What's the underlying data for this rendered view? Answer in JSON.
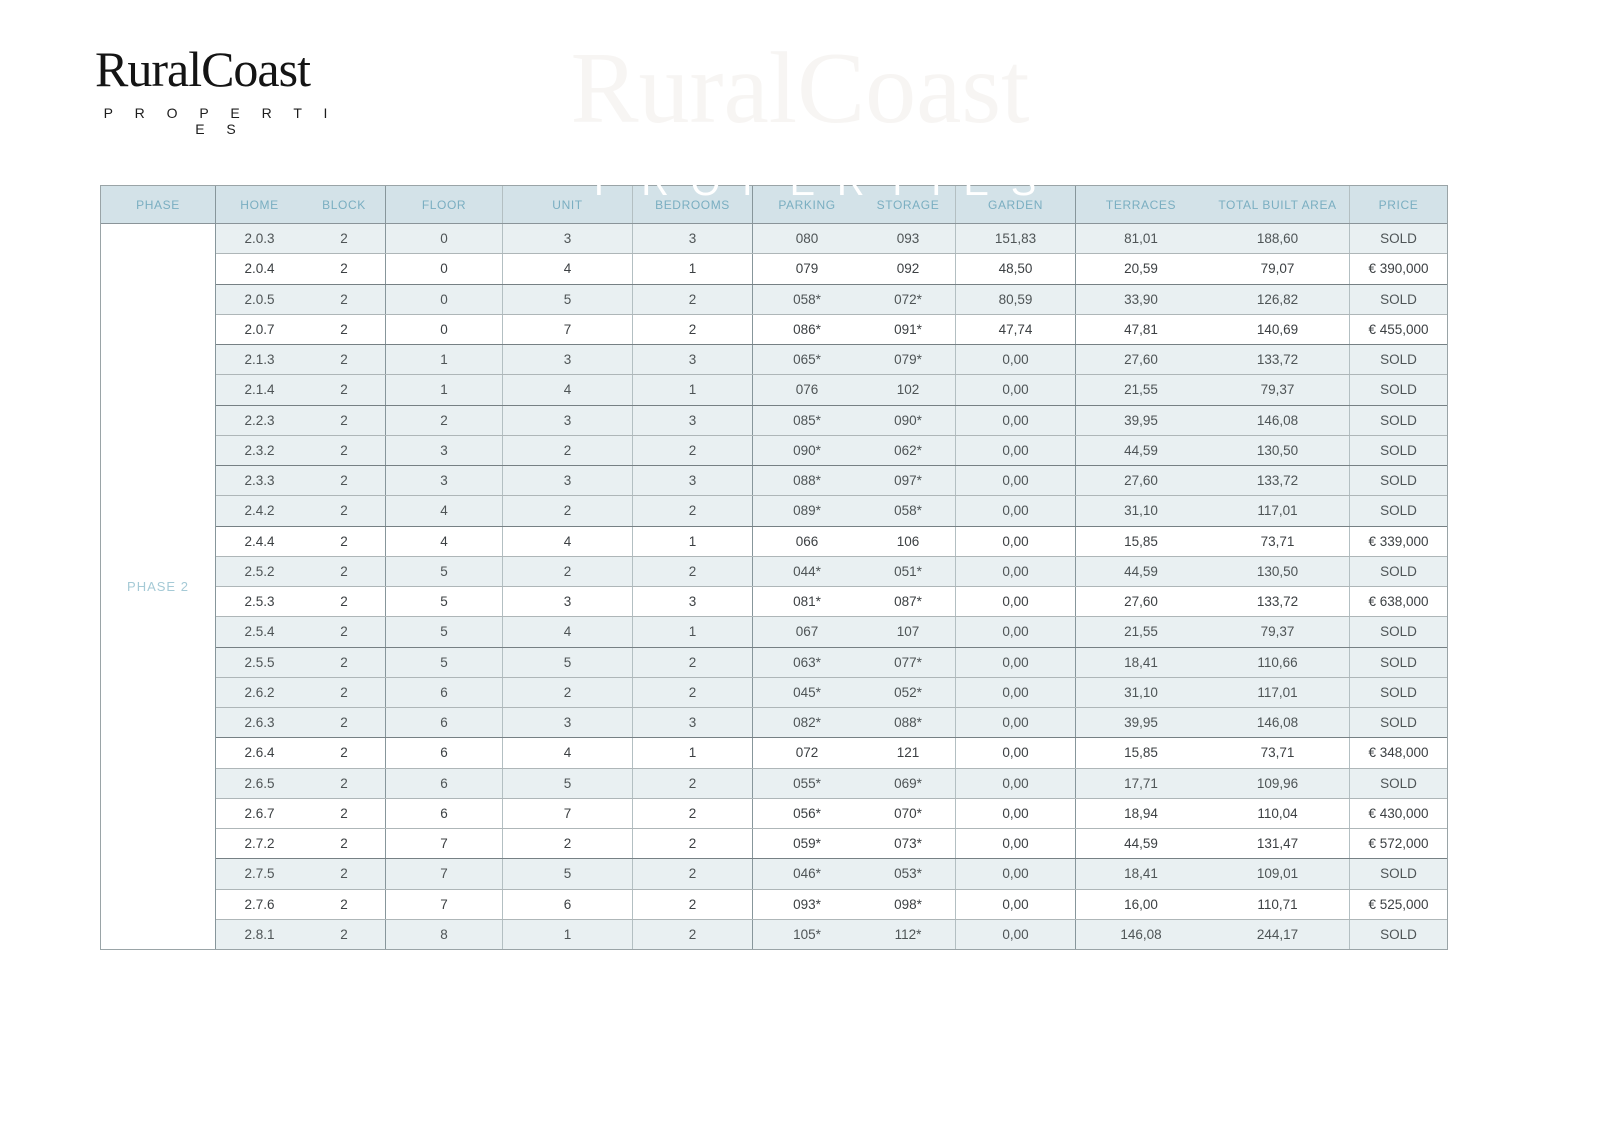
{
  "brand": {
    "name": "RuralCoast",
    "tagline": "P R O P E R T I E S"
  },
  "watermark": {
    "line1": "RuralCoast",
    "line2": "PROPERTIES"
  },
  "colors": {
    "header_bg": "#d3e2e8",
    "header_text": "#7aaec1",
    "sold_row_tint": "#e9f0f2",
    "phase_label_text": "#a5cad6",
    "body_text": "#3c4043"
  },
  "table": {
    "phase_label": "PHASE 2",
    "headers": [
      "PHASE",
      "HOME",
      "BLOCK",
      "FLOOR",
      "UNIT",
      "BEDROOMS",
      "PARKING",
      "STORAGE",
      "GARDEN",
      "TERRACES",
      "TOTAL BUILT AREA",
      "PRICE"
    ],
    "rows": [
      {
        "home": "2.0.3",
        "block": "2",
        "floor": "0",
        "unit": "3",
        "bedrooms": "3",
        "parking": "080",
        "storage": "093",
        "garden": "151,83",
        "terraces": "81,01",
        "total_built_area": "188,60",
        "price": "SOLD",
        "sold": true,
        "sep": false
      },
      {
        "home": "2.0.4",
        "block": "2",
        "floor": "0",
        "unit": "4",
        "bedrooms": "1",
        "parking": "079",
        "storage": "092",
        "garden": "48,50",
        "terraces": "20,59",
        "total_built_area": "79,07",
        "price": "€ 390,000",
        "sold": false,
        "sep": false
      },
      {
        "home": "2.0.5",
        "block": "2",
        "floor": "0",
        "unit": "5",
        "bedrooms": "2",
        "parking": "058*",
        "storage": "072*",
        "garden": "80,59",
        "terraces": "33,90",
        "total_built_area": "126,82",
        "price": "SOLD",
        "sold": true,
        "sep": true
      },
      {
        "home": "2.0.7",
        "block": "2",
        "floor": "0",
        "unit": "7",
        "bedrooms": "2",
        "parking": "086*",
        "storage": "091*",
        "garden": "47,74",
        "terraces": "47,81",
        "total_built_area": "140,69",
        "price": "€ 455,000",
        "sold": false,
        "sep": false
      },
      {
        "home": "2.1.3",
        "block": "2",
        "floor": "1",
        "unit": "3",
        "bedrooms": "3",
        "parking": "065*",
        "storage": "079*",
        "garden": "0,00",
        "terraces": "27,60",
        "total_built_area": "133,72",
        "price": "SOLD",
        "sold": true,
        "sep": true
      },
      {
        "home": "2.1.4",
        "block": "2",
        "floor": "1",
        "unit": "4",
        "bedrooms": "1",
        "parking": "076",
        "storage": "102",
        "garden": "0,00",
        "terraces": "21,55",
        "total_built_area": "79,37",
        "price": "SOLD",
        "sold": true,
        "sep": false
      },
      {
        "home": "2.2.3",
        "block": "2",
        "floor": "2",
        "unit": "3",
        "bedrooms": "3",
        "parking": "085*",
        "storage": "090*",
        "garden": "0,00",
        "terraces": "39,95",
        "total_built_area": "146,08",
        "price": "SOLD",
        "sold": true,
        "sep": true
      },
      {
        "home": "2.3.2",
        "block": "2",
        "floor": "3",
        "unit": "2",
        "bedrooms": "2",
        "parking": "090*",
        "storage": "062*",
        "garden": "0,00",
        "terraces": "44,59",
        "total_built_area": "130,50",
        "price": "SOLD",
        "sold": true,
        "sep": false
      },
      {
        "home": "2.3.3",
        "block": "2",
        "floor": "3",
        "unit": "3",
        "bedrooms": "3",
        "parking": "088*",
        "storage": "097*",
        "garden": "0,00",
        "terraces": "27,60",
        "total_built_area": "133,72",
        "price": "SOLD",
        "sold": true,
        "sep": true
      },
      {
        "home": "2.4.2",
        "block": "2",
        "floor": "4",
        "unit": "2",
        "bedrooms": "2",
        "parking": "089*",
        "storage": "058*",
        "garden": "0,00",
        "terraces": "31,10",
        "total_built_area": "117,01",
        "price": "SOLD",
        "sold": true,
        "sep": false
      },
      {
        "home": "2.4.4",
        "block": "2",
        "floor": "4",
        "unit": "4",
        "bedrooms": "1",
        "parking": "066",
        "storage": "106",
        "garden": "0,00",
        "terraces": "15,85",
        "total_built_area": "73,71",
        "price": "€ 339,000",
        "sold": false,
        "sep": true
      },
      {
        "home": "2.5.2",
        "block": "2",
        "floor": "5",
        "unit": "2",
        "bedrooms": "2",
        "parking": "044*",
        "storage": "051*",
        "garden": "0,00",
        "terraces": "44,59",
        "total_built_area": "130,50",
        "price": "SOLD",
        "sold": true,
        "sep": false
      },
      {
        "home": "2.5.3",
        "block": "2",
        "floor": "5",
        "unit": "3",
        "bedrooms": "3",
        "parking": "081*",
        "storage": "087*",
        "garden": "0,00",
        "terraces": "27,60",
        "total_built_area": "133,72",
        "price": "€ 638,000",
        "sold": false,
        "sep": false
      },
      {
        "home": "2.5.4",
        "block": "2",
        "floor": "5",
        "unit": "4",
        "bedrooms": "1",
        "parking": "067",
        "storage": "107",
        "garden": "0,00",
        "terraces": "21,55",
        "total_built_area": "79,37",
        "price": "SOLD",
        "sold": true,
        "sep": false
      },
      {
        "home": "2.5.5",
        "block": "2",
        "floor": "5",
        "unit": "5",
        "bedrooms": "2",
        "parking": "063*",
        "storage": "077*",
        "garden": "0,00",
        "terraces": "18,41",
        "total_built_area": "110,66",
        "price": "SOLD",
        "sold": true,
        "sep": true
      },
      {
        "home": "2.6.2",
        "block": "2",
        "floor": "6",
        "unit": "2",
        "bedrooms": "2",
        "parking": "045*",
        "storage": "052*",
        "garden": "0,00",
        "terraces": "31,10",
        "total_built_area": "117,01",
        "price": "SOLD",
        "sold": true,
        "sep": false
      },
      {
        "home": "2.6.3",
        "block": "2",
        "floor": "6",
        "unit": "3",
        "bedrooms": "3",
        "parking": "082*",
        "storage": "088*",
        "garden": "0,00",
        "terraces": "39,95",
        "total_built_area": "146,08",
        "price": "SOLD",
        "sold": true,
        "sep": false
      },
      {
        "home": "2.6.4",
        "block": "2",
        "floor": "6",
        "unit": "4",
        "bedrooms": "1",
        "parking": "072",
        "storage": "121",
        "garden": "0,00",
        "terraces": "15,85",
        "total_built_area": "73,71",
        "price": "€ 348,000",
        "sold": false,
        "sep": true
      },
      {
        "home": "2.6.5",
        "block": "2",
        "floor": "6",
        "unit": "5",
        "bedrooms": "2",
        "parking": "055*",
        "storage": "069*",
        "garden": "0,00",
        "terraces": "17,71",
        "total_built_area": "109,96",
        "price": "SOLD",
        "sold": true,
        "sep": false
      },
      {
        "home": "2.6.7",
        "block": "2",
        "floor": "6",
        "unit": "7",
        "bedrooms": "2",
        "parking": "056*",
        "storage": "070*",
        "garden": "0,00",
        "terraces": "18,94",
        "total_built_area": "110,04",
        "price": "€ 430,000",
        "sold": false,
        "sep": false
      },
      {
        "home": "2.7.2",
        "block": "2",
        "floor": "7",
        "unit": "2",
        "bedrooms": "2",
        "parking": "059*",
        "storage": "073*",
        "garden": "0,00",
        "terraces": "44,59",
        "total_built_area": "131,47",
        "price": "€ 572,000",
        "sold": false,
        "sep": false
      },
      {
        "home": "2.7.5",
        "block": "2",
        "floor": "7",
        "unit": "5",
        "bedrooms": "2",
        "parking": "046*",
        "storage": "053*",
        "garden": "0,00",
        "terraces": "18,41",
        "total_built_area": "109,01",
        "price": "SOLD",
        "sold": true,
        "sep": true
      },
      {
        "home": "2.7.6",
        "block": "2",
        "floor": "7",
        "unit": "6",
        "bedrooms": "2",
        "parking": "093*",
        "storage": "098*",
        "garden": "0,00",
        "terraces": "16,00",
        "total_built_area": "110,71",
        "price": "€ 525,000",
        "sold": false,
        "sep": false
      },
      {
        "home": "2.8.1",
        "block": "2",
        "floor": "8",
        "unit": "1",
        "bedrooms": "2",
        "parking": "105*",
        "storage": "112*",
        "garden": "0,00",
        "terraces": "146,08",
        "total_built_area": "244,17",
        "price": "SOLD",
        "sold": true,
        "sep": false
      }
    ]
  }
}
